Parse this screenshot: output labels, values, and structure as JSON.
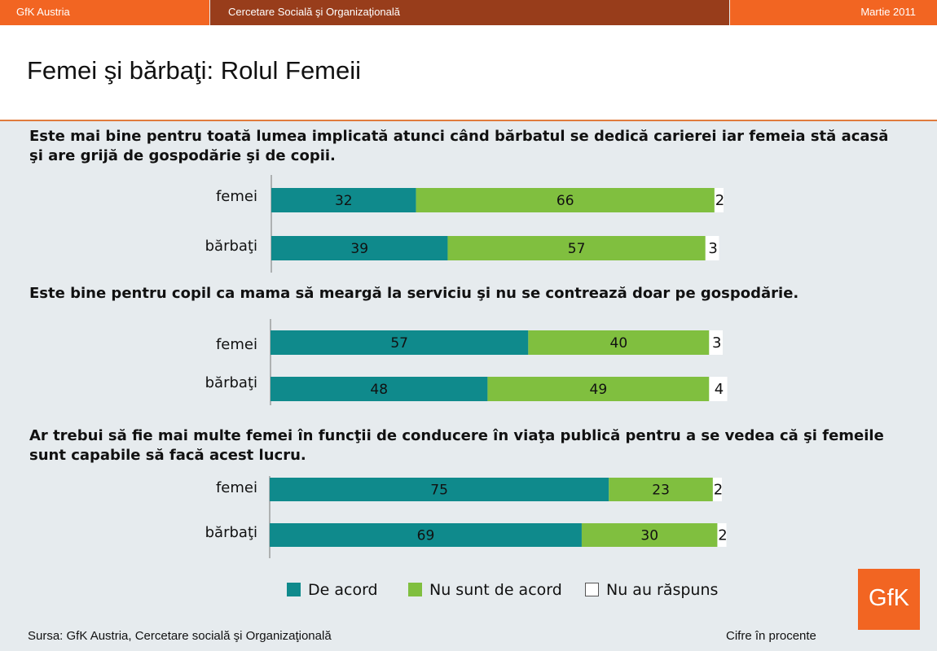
{
  "header": {
    "left": "GfK Austria",
    "center": "Cercetare Socială şi Organizaţională",
    "right": "Martie 2011"
  },
  "title": "Femei şi bărbaţi: Rolul Femeii",
  "legend": [
    {
      "label": "De acord",
      "color": "#0f8a8c"
    },
    {
      "label": "Nu sunt de acord",
      "color": "#80bf3f"
    },
    {
      "label": "Nu au răspuns",
      "color": "#ffffff"
    }
  ],
  "footer": {
    "source": "Sursa: GfK Austria, Cercetare socială şi Organizaţională",
    "note": "Cifre în procente"
  },
  "logo": "GfK",
  "chart_data": [
    {
      "type": "bar",
      "orientation": "horizontal",
      "stacked": true,
      "title": "Este mai bine pentru toată lumea implicată atunci când bărbatul se dedică carierei iar femeia stă acasă şi are grijă de gospodărie şi de copii.",
      "categories": [
        "femei",
        "bărbaţi"
      ],
      "series": [
        {
          "name": "De acord",
          "values": [
            32,
            39
          ]
        },
        {
          "name": "Nu sunt de acord",
          "values": [
            66,
            57
          ]
        },
        {
          "name": "Nu au răspuns",
          "values": [
            2,
            3
          ]
        }
      ],
      "xlim": [
        0,
        100
      ]
    },
    {
      "type": "bar",
      "orientation": "horizontal",
      "stacked": true,
      "title": "Este bine pentru copil ca mama să meargă la serviciu şi nu se contrează doar pe gospodărie.",
      "categories": [
        "femei",
        "bărbaţi"
      ],
      "series": [
        {
          "name": "De acord",
          "values": [
            57,
            48
          ]
        },
        {
          "name": "Nu sunt de acord",
          "values": [
            40,
            49
          ]
        },
        {
          "name": "Nu au răspuns",
          "values": [
            3,
            4
          ]
        }
      ],
      "xlim": [
        0,
        100
      ]
    },
    {
      "type": "bar",
      "orientation": "horizontal",
      "stacked": true,
      "title": "Ar trebui să fie mai multe femei în funcţii de conducere în viaţa publică pentru a se vedea că şi femeile sunt capabile să facă acest lucru.",
      "categories": [
        "femei",
        "bărbaţi"
      ],
      "series": [
        {
          "name": "De acord",
          "values": [
            75,
            69
          ]
        },
        {
          "name": "Nu sunt de acord",
          "values": [
            23,
            30
          ]
        },
        {
          "name": "Nu au răspuns",
          "values": [
            2,
            2
          ]
        }
      ],
      "xlim": [
        0,
        100
      ]
    }
  ]
}
